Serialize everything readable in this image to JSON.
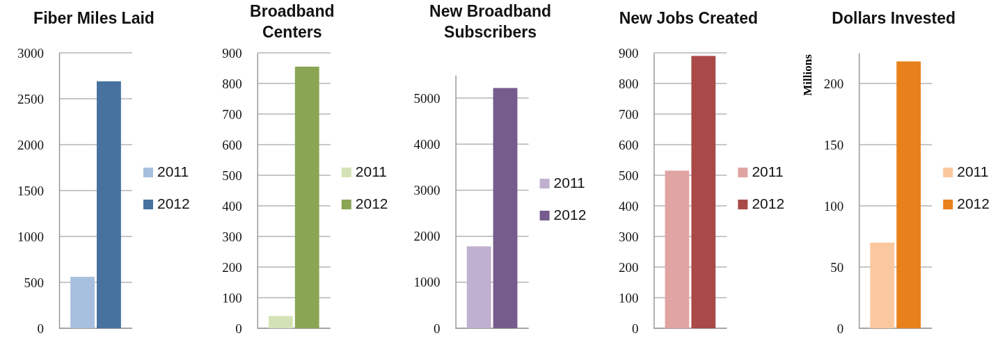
{
  "chart_data": [
    {
      "type": "bar",
      "title": "Fiber Miles Laid",
      "categories": [
        null
      ],
      "series": [
        {
          "name": "2011",
          "color": "#a7c0de",
          "values": [
            560
          ]
        },
        {
          "name": "2012",
          "color": "#4772a0",
          "values": [
            2690
          ]
        }
      ],
      "ylim": [
        0,
        3000
      ],
      "yticks": [
        0,
        500,
        1000,
        1500,
        2000,
        2500,
        3000
      ],
      "grid": "y",
      "legend": "right"
    },
    {
      "type": "bar",
      "title": "Broadband Centers",
      "categories": [
        null
      ],
      "series": [
        {
          "name": "2011",
          "color": "#d4e3b5",
          "values": [
            40
          ]
        },
        {
          "name": "2012",
          "color": "#8aa553",
          "values": [
            855
          ]
        }
      ],
      "ylim": [
        0,
        900
      ],
      "yticks": [
        0,
        100,
        200,
        300,
        400,
        500,
        600,
        700,
        800,
        900
      ],
      "grid": "y",
      "legend": "right"
    },
    {
      "type": "bar",
      "title": "New Broadband Subscribers",
      "categories": [
        null
      ],
      "series": [
        {
          "name": "2011",
          "color": "#c0b0d0",
          "values": [
            1780
          ]
        },
        {
          "name": "2012",
          "color": "#765c8c",
          "values": [
            5220
          ]
        }
      ],
      "ylim": [
        0,
        5500
      ],
      "yticks": [
        0,
        1000,
        2000,
        3000,
        4000,
        5000
      ],
      "grid": "y",
      "legend": "right"
    },
    {
      "type": "bar",
      "title": "New Jobs Created",
      "categories": [
        null
      ],
      "series": [
        {
          "name": "2011",
          "color": "#e0a4a2",
          "values": [
            515
          ]
        },
        {
          "name": "2012",
          "color": "#a94a48",
          "values": [
            890
          ]
        }
      ],
      "ylim": [
        0,
        900
      ],
      "yticks": [
        0,
        100,
        200,
        300,
        400,
        500,
        600,
        700,
        800,
        900
      ],
      "grid": "y",
      "legend": "right"
    },
    {
      "type": "bar",
      "title": "Dollars Invested",
      "ylabel": "Millions",
      "categories": [
        null
      ],
      "series": [
        {
          "name": "2011",
          "color": "#fac89e",
          "values": [
            70
          ]
        },
        {
          "name": "2012",
          "color": "#e8811c",
          "values": [
            218
          ]
        }
      ],
      "ylim": [
        0,
        225
      ],
      "yticks": [
        0,
        50,
        100,
        150,
        200
      ],
      "grid": "y",
      "legend": "right"
    }
  ]
}
